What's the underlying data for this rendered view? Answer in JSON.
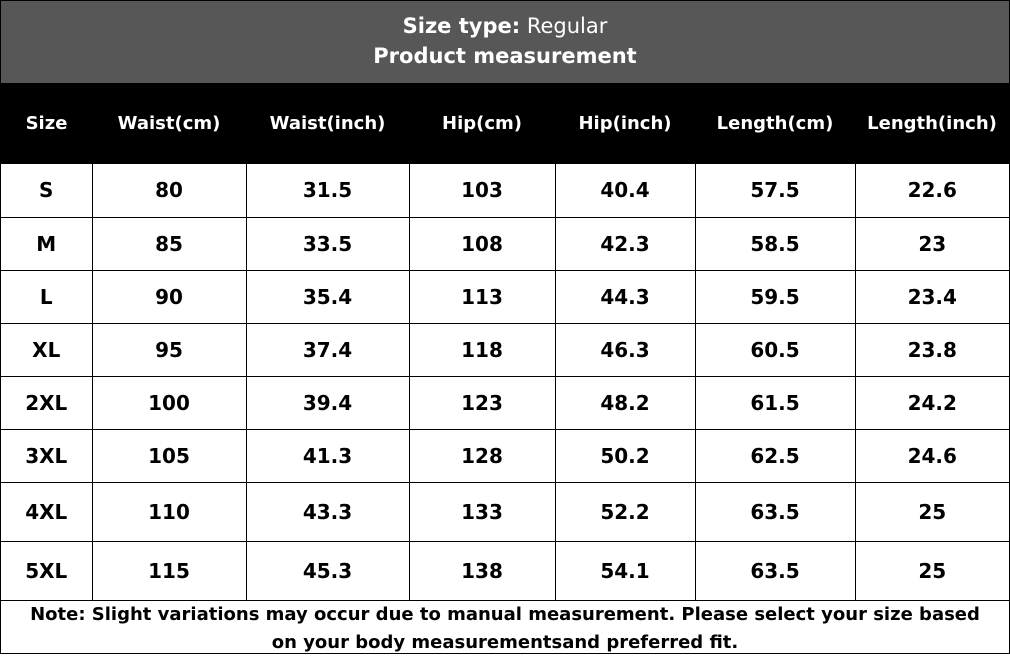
{
  "title": {
    "size_type_label": "Size type:",
    "size_type_value": "Regular",
    "subtitle": "Product measurement"
  },
  "colors": {
    "title_bar": "#575757",
    "header_bar": "#000000",
    "text": "#000000",
    "header_text": "#ffffff"
  },
  "table": {
    "headers": [
      "Size",
      "Waist(cm)",
      "Waist(inch)",
      "Hip(cm)",
      "Hip(inch)",
      "Length(cm)",
      "Length(inch)"
    ],
    "rows": [
      [
        "S",
        "80",
        "31.5",
        "103",
        "40.4",
        "57.5",
        "22.6"
      ],
      [
        "M",
        "85",
        "33.5",
        "108",
        "42.3",
        "58.5",
        "23"
      ],
      [
        "L",
        "90",
        "35.4",
        "113",
        "44.3",
        "59.5",
        "23.4"
      ],
      [
        "XL",
        "95",
        "37.4",
        "118",
        "46.3",
        "60.5",
        "23.8"
      ],
      [
        "2XL",
        "100",
        "39.4",
        "123",
        "48.2",
        "61.5",
        "24.2"
      ],
      [
        "3XL",
        "105",
        "41.3",
        "128",
        "50.2",
        "62.5",
        "24.6"
      ],
      [
        "4XL",
        "110",
        "43.3",
        "133",
        "52.2",
        "63.5",
        "25"
      ],
      [
        "5XL",
        "115",
        "45.3",
        "138",
        "54.1",
        "63.5",
        "25"
      ]
    ]
  },
  "note": "Note: Slight variations may occur due to manual measurement. Please select your size based on your body measurementsand preferred fit."
}
